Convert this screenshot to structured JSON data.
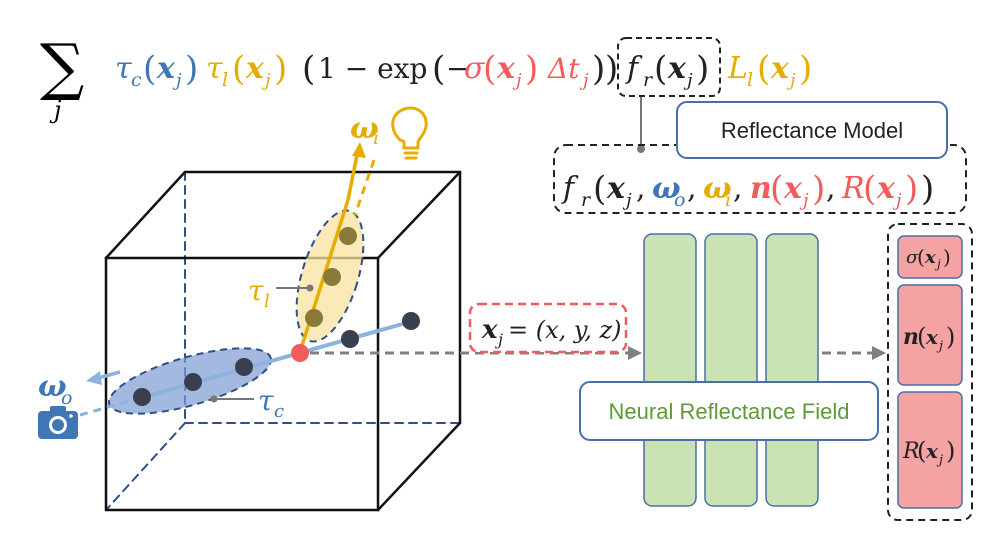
{
  "equation": {
    "sum_symbol": "∑",
    "sum_index": "j",
    "tau": "τ",
    "sub_c": "c",
    "sub_l": "l",
    "x": "x",
    "sub_j": "j",
    "one_minus_exp": "1 − exp",
    "minus": "−",
    "sigma": "σ",
    "delta_t": "Δt",
    "f": "f",
    "sub_r": "r",
    "L": "L",
    "lparen": "(",
    "rparen": ")"
  },
  "reflectance_model": {
    "label": "Reflectance Model",
    "args": {
      "omega": "ω",
      "sub_o": "o",
      "sub_i": "i",
      "n": "n",
      "R": "R",
      "comma": ","
    }
  },
  "scene": {
    "omega": "ω",
    "sub_i": "i",
    "sub_o": "o",
    "tau": "τ",
    "sub_l": "l",
    "sub_c": "c"
  },
  "sample_point": {
    "x": "x",
    "sub_j": "j",
    "coords": "= (x, y, z)"
  },
  "network": {
    "label": "Neural Reflectance Field"
  },
  "outputs": {
    "sigma": "σ",
    "n": "n",
    "R": "R",
    "x": "x",
    "sub_j": "j"
  },
  "colors": {
    "blue": "#3f77b4",
    "yellow": "#e6ad00",
    "red": "#f25c5c",
    "green_fill": "#c9e3b4",
    "green_text": "#5c9a3a",
    "pink_fill": "#f4a2a2",
    "box_border": "#4a6ea8",
    "dark": "#2b2b2b"
  },
  "icons": [
    "camera-icon",
    "light-bulb-icon"
  ]
}
